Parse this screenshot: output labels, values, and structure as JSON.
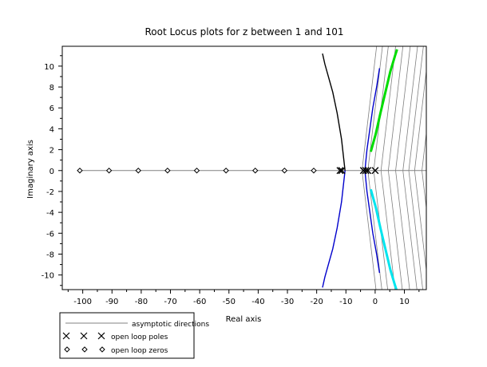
{
  "chart_data": {
    "type": "line",
    "title": "Root Locus plots for z between 1 and 101",
    "xlabel": "Real axis",
    "ylabel": "Imaginary axis",
    "xlim": [
      -107,
      17.5
    ],
    "ylim": [
      -11.4,
      11.9
    ],
    "xticks": [
      -100,
      -90,
      -80,
      -70,
      -60,
      -50,
      -40,
      -30,
      -20,
      -10,
      0,
      10
    ],
    "yticks": [
      -10,
      -8,
      -6,
      -4,
      -2,
      0,
      2,
      4,
      6,
      8,
      10
    ],
    "grid": false,
    "legend_position": "below-left",
    "legend": [
      {
        "label": "asymptotic directions",
        "marker": "line"
      },
      {
        "label": "open loop poles",
        "marker": "x"
      },
      {
        "label": "open loop zeros",
        "marker": "diamond"
      }
    ],
    "colors": {
      "black_branch": "#000000",
      "blue_branch": "#0000cc",
      "green_branch": "#00dd00",
      "cyan_branch": "#00e5ee",
      "asymptote": "#808080"
    },
    "open_loop_poles": [
      {
        "x": -12.0,
        "y": 0
      },
      {
        "x": -11.4,
        "y": 0
      },
      {
        "x": -4.0,
        "y": 0
      },
      {
        "x": -3.2,
        "y": 0
      },
      {
        "x": -2.5,
        "y": 0
      },
      {
        "x": 0,
        "y": 0
      }
    ],
    "open_loop_zeros": [
      {
        "x": -101,
        "y": 0
      },
      {
        "x": -91,
        "y": 0
      },
      {
        "x": -81,
        "y": 0
      },
      {
        "x": -71,
        "y": 0
      },
      {
        "x": -61,
        "y": 0
      },
      {
        "x": -51,
        "y": 0
      },
      {
        "x": -41,
        "y": 0
      },
      {
        "x": -31,
        "y": 0
      },
      {
        "x": -21,
        "y": 0
      }
    ],
    "real_axis_locus": [
      -101,
      17.5
    ],
    "series": [
      {
        "color_key": "black_branch",
        "x": [
          -10.3,
          -11.5,
          -13.0,
          -14.5,
          -16.0,
          -17.2,
          -18.0
        ],
        "y": [
          0,
          3.0,
          5.5,
          7.5,
          9.0,
          10.2,
          11.2
        ]
      },
      {
        "color_key": "blue_branch",
        "x": [
          -10.3,
          -11.5,
          -13.0,
          -14.5,
          -16.0,
          -17.2,
          -18.0
        ],
        "y": [
          0,
          -3.0,
          -5.5,
          -7.5,
          -9.0,
          -10.2,
          -11.2
        ]
      },
      {
        "color_key": "blue_branch",
        "x": [
          -3.5,
          -2.8,
          -1.8,
          -0.8,
          0.5,
          1.5
        ],
        "y": [
          0,
          2.0,
          4.0,
          6.0,
          8.0,
          9.8
        ]
      },
      {
        "color_key": "blue_branch",
        "x": [
          -3.5,
          -2.8,
          -1.8,
          -0.8,
          0.5,
          1.5
        ],
        "y": [
          0,
          -2.0,
          -4.0,
          -6.0,
          -8.0,
          -9.8
        ]
      },
      {
        "color_key": "green_branch",
        "x": [
          -1.5,
          0.2,
          1.8,
          3.5,
          5.2,
          6.8,
          7.5
        ],
        "y": [
          1.8,
          3.5,
          5.5,
          7.5,
          9.5,
          11.0,
          11.6
        ]
      },
      {
        "color_key": "cyan_branch",
        "x": [
          -1.5,
          0.2,
          1.8,
          3.5,
          5.2,
          6.8,
          7.5
        ],
        "y": [
          -1.8,
          -3.5,
          -5.5,
          -7.5,
          -9.5,
          -11.0,
          -11.6
        ]
      }
    ],
    "asymptote_origins": [
      -4.5,
      -2.5,
      -0.5,
      2.0,
      4.5,
      7.0,
      9.5,
      11.5,
      13.5,
      16.0,
      17.5
    ]
  }
}
